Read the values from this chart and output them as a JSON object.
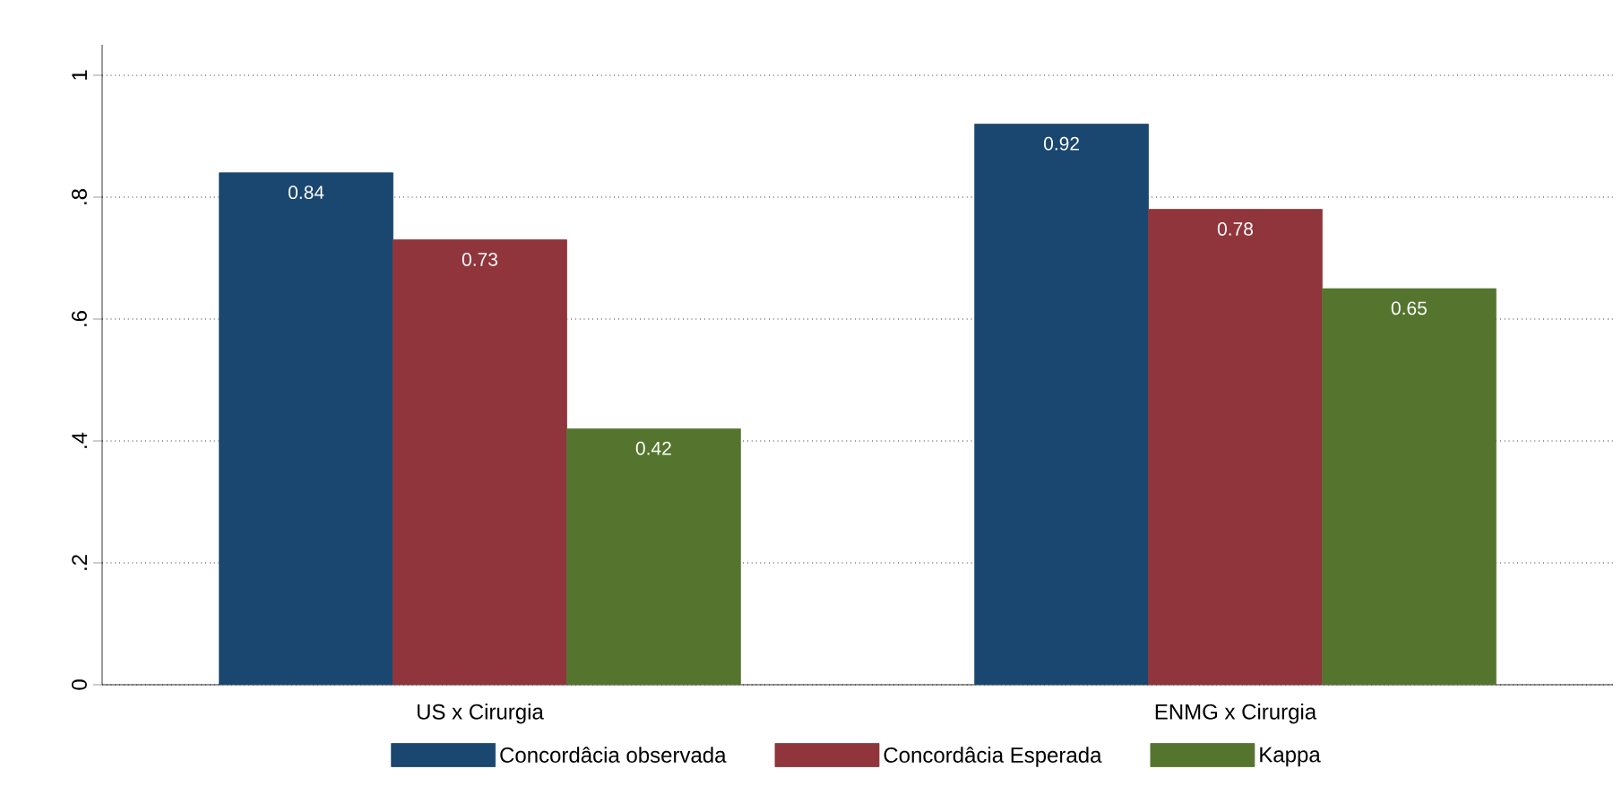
{
  "chart_data": {
    "type": "bar",
    "categories": [
      "US x Cirurgia",
      "ENMG  x Cirurgia"
    ],
    "series": [
      {
        "name": "Concordâcia observada",
        "color": "#1a476f",
        "values": [
          0.84,
          0.92
        ]
      },
      {
        "name": "Concordâcia Esperada",
        "color": "#90353b",
        "values": [
          0.73,
          0.78
        ]
      },
      {
        "name": "Kappa",
        "color": "#55752f",
        "values": [
          0.42,
          0.65
        ]
      }
    ],
    "ylim": [
      0,
      1.05
    ],
    "yticks": [
      0,
      {
        "value": 0.2,
        "label": ".2"
      },
      {
        "value": 0.4,
        "label": ".4"
      },
      {
        "value": 0.6,
        "label": ".6"
      },
      {
        "value": 0.8,
        "label": ".8"
      },
      1
    ],
    "grid": "y",
    "legend": "bottom",
    "data_labels": true
  }
}
